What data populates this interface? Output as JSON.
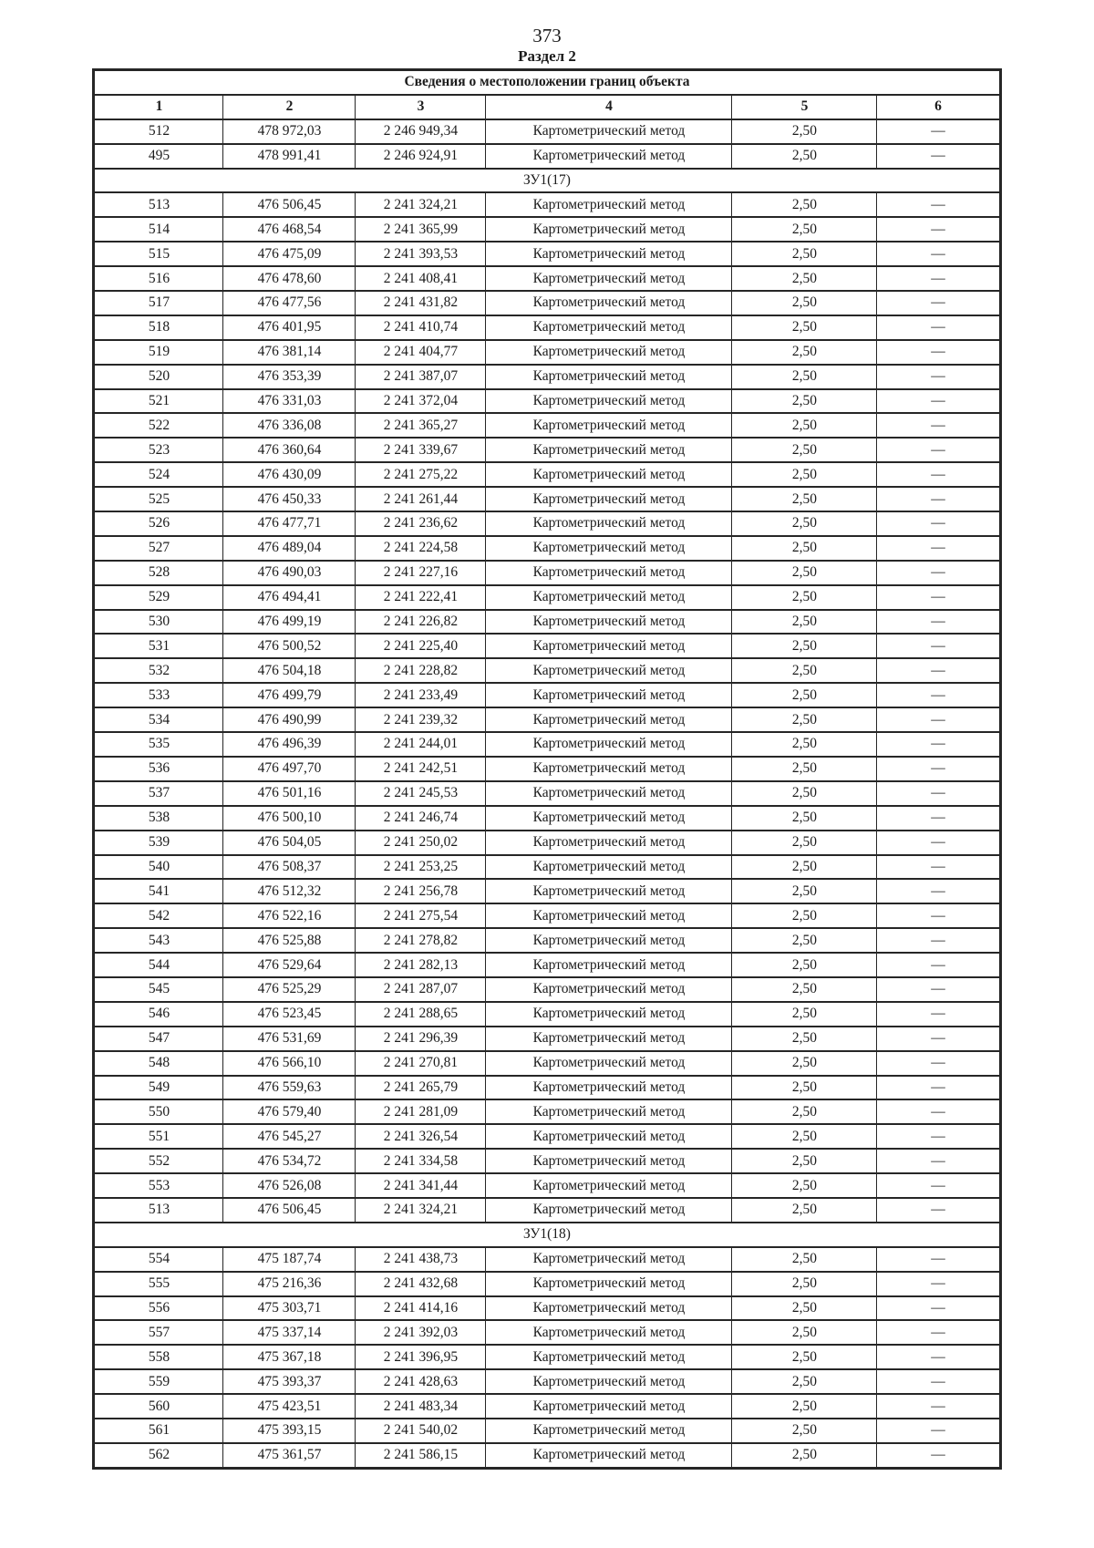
{
  "page": {
    "number": "373",
    "section_title": "Раздел 2"
  },
  "table": {
    "title": "Сведения о местоположении границ объекта",
    "column_numbers": [
      "1",
      "2",
      "3",
      "4",
      "5",
      "6"
    ],
    "row_defaults": {
      "method": "Картометрический метод",
      "precision": "2,50",
      "note": "—"
    },
    "rows": [
      {
        "n": "512",
        "x": "478 972,03",
        "y": "2 246 949,34"
      },
      {
        "n": "495",
        "x": "478 991,41",
        "y": "2 246 924,91"
      },
      {
        "section": "ЗУ1(17)"
      },
      {
        "n": "513",
        "x": "476 506,45",
        "y": "2 241 324,21"
      },
      {
        "n": "514",
        "x": "476 468,54",
        "y": "2 241 365,99"
      },
      {
        "n": "515",
        "x": "476 475,09",
        "y": "2 241 393,53"
      },
      {
        "n": "516",
        "x": "476 478,60",
        "y": "2 241 408,41"
      },
      {
        "n": "517",
        "x": "476 477,56",
        "y": "2 241 431,82"
      },
      {
        "n": "518",
        "x": "476 401,95",
        "y": "2 241 410,74"
      },
      {
        "n": "519",
        "x": "476 381,14",
        "y": "2 241 404,77"
      },
      {
        "n": "520",
        "x": "476 353,39",
        "y": "2 241 387,07"
      },
      {
        "n": "521",
        "x": "476 331,03",
        "y": "2 241 372,04"
      },
      {
        "n": "522",
        "x": "476 336,08",
        "y": "2 241 365,27"
      },
      {
        "n": "523",
        "x": "476 360,64",
        "y": "2 241 339,67"
      },
      {
        "n": "524",
        "x": "476 430,09",
        "y": "2 241 275,22"
      },
      {
        "n": "525",
        "x": "476 450,33",
        "y": "2 241 261,44"
      },
      {
        "n": "526",
        "x": "476 477,71",
        "y": "2 241 236,62"
      },
      {
        "n": "527",
        "x": "476 489,04",
        "y": "2 241 224,58"
      },
      {
        "n": "528",
        "x": "476 490,03",
        "y": "2 241 227,16"
      },
      {
        "n": "529",
        "x": "476 494,41",
        "y": "2 241 222,41"
      },
      {
        "n": "530",
        "x": "476 499,19",
        "y": "2 241 226,82"
      },
      {
        "n": "531",
        "x": "476 500,52",
        "y": "2 241 225,40"
      },
      {
        "n": "532",
        "x": "476 504,18",
        "y": "2 241 228,82"
      },
      {
        "n": "533",
        "x": "476 499,79",
        "y": "2 241 233,49"
      },
      {
        "n": "534",
        "x": "476 490,99",
        "y": "2 241 239,32"
      },
      {
        "n": "535",
        "x": "476 496,39",
        "y": "2 241 244,01"
      },
      {
        "n": "536",
        "x": "476 497,70",
        "y": "2 241 242,51"
      },
      {
        "n": "537",
        "x": "476 501,16",
        "y": "2 241 245,53"
      },
      {
        "n": "538",
        "x": "476 500,10",
        "y": "2 241 246,74"
      },
      {
        "n": "539",
        "x": "476 504,05",
        "y": "2 241 250,02"
      },
      {
        "n": "540",
        "x": "476 508,37",
        "y": "2 241 253,25"
      },
      {
        "n": "541",
        "x": "476 512,32",
        "y": "2 241 256,78"
      },
      {
        "n": "542",
        "x": "476 522,16",
        "y": "2 241 275,54"
      },
      {
        "n": "543",
        "x": "476 525,88",
        "y": "2 241 278,82"
      },
      {
        "n": "544",
        "x": "476 529,64",
        "y": "2 241 282,13"
      },
      {
        "n": "545",
        "x": "476 525,29",
        "y": "2 241 287,07"
      },
      {
        "n": "546",
        "x": "476 523,45",
        "y": "2 241 288,65"
      },
      {
        "n": "547",
        "x": "476 531,69",
        "y": "2 241 296,39"
      },
      {
        "n": "548",
        "x": "476 566,10",
        "y": "2 241 270,81"
      },
      {
        "n": "549",
        "x": "476 559,63",
        "y": "2 241 265,79"
      },
      {
        "n": "550",
        "x": "476 579,40",
        "y": "2 241 281,09"
      },
      {
        "n": "551",
        "x": "476 545,27",
        "y": "2 241 326,54"
      },
      {
        "n": "552",
        "x": "476 534,72",
        "y": "2 241 334,58"
      },
      {
        "n": "553",
        "x": "476 526,08",
        "y": "2 241 341,44"
      },
      {
        "n": "513",
        "x": "476 506,45",
        "y": "2 241 324,21"
      },
      {
        "section": "ЗУ1(18)"
      },
      {
        "n": "554",
        "x": "475 187,74",
        "y": "2 241 438,73"
      },
      {
        "n": "555",
        "x": "475 216,36",
        "y": "2 241 432,68"
      },
      {
        "n": "556",
        "x": "475 303,71",
        "y": "2 241 414,16"
      },
      {
        "n": "557",
        "x": "475 337,14",
        "y": "2 241 392,03"
      },
      {
        "n": "558",
        "x": "475 367,18",
        "y": "2 241 396,95"
      },
      {
        "n": "559",
        "x": "475 393,37",
        "y": "2 241 428,63"
      },
      {
        "n": "560",
        "x": "475 423,51",
        "y": "2 241 483,34"
      },
      {
        "n": "561",
        "x": "475 393,15",
        "y": "2 241 540,02"
      },
      {
        "n": "562",
        "x": "475 361,57",
        "y": "2 241 586,15"
      }
    ]
  }
}
